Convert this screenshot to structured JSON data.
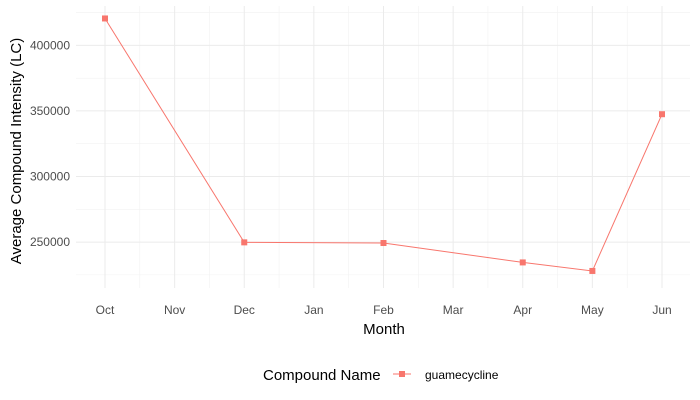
{
  "chart_data": {
    "type": "line",
    "title": "",
    "xlabel": "Month",
    "ylabel": "Average Compound Intensity (LC)",
    "categories": [
      "Oct",
      "Nov",
      "Dec",
      "Jan",
      "Feb",
      "Mar",
      "Apr",
      "May",
      "Jun"
    ],
    "series": [
      {
        "name": "guamecycline",
        "color": "#f8766d",
        "points": [
          {
            "x": "Oct",
            "y": 420500
          },
          {
            "x": "Dec",
            "y": 249800
          },
          {
            "x": "Feb",
            "y": 249300
          },
          {
            "x": "Apr",
            "y": 234500
          },
          {
            "x": "May",
            "y": 228000
          },
          {
            "x": "Jun",
            "y": 347500
          }
        ]
      }
    ],
    "yticks": [
      250000,
      300000,
      350000,
      400000
    ],
    "ytick_labels": [
      "250000",
      "300000",
      "350000",
      "400000"
    ],
    "ylim": [
      215000,
      430000
    ],
    "grid": true,
    "legend": {
      "title": "Compound Name",
      "position": "bottom"
    }
  }
}
